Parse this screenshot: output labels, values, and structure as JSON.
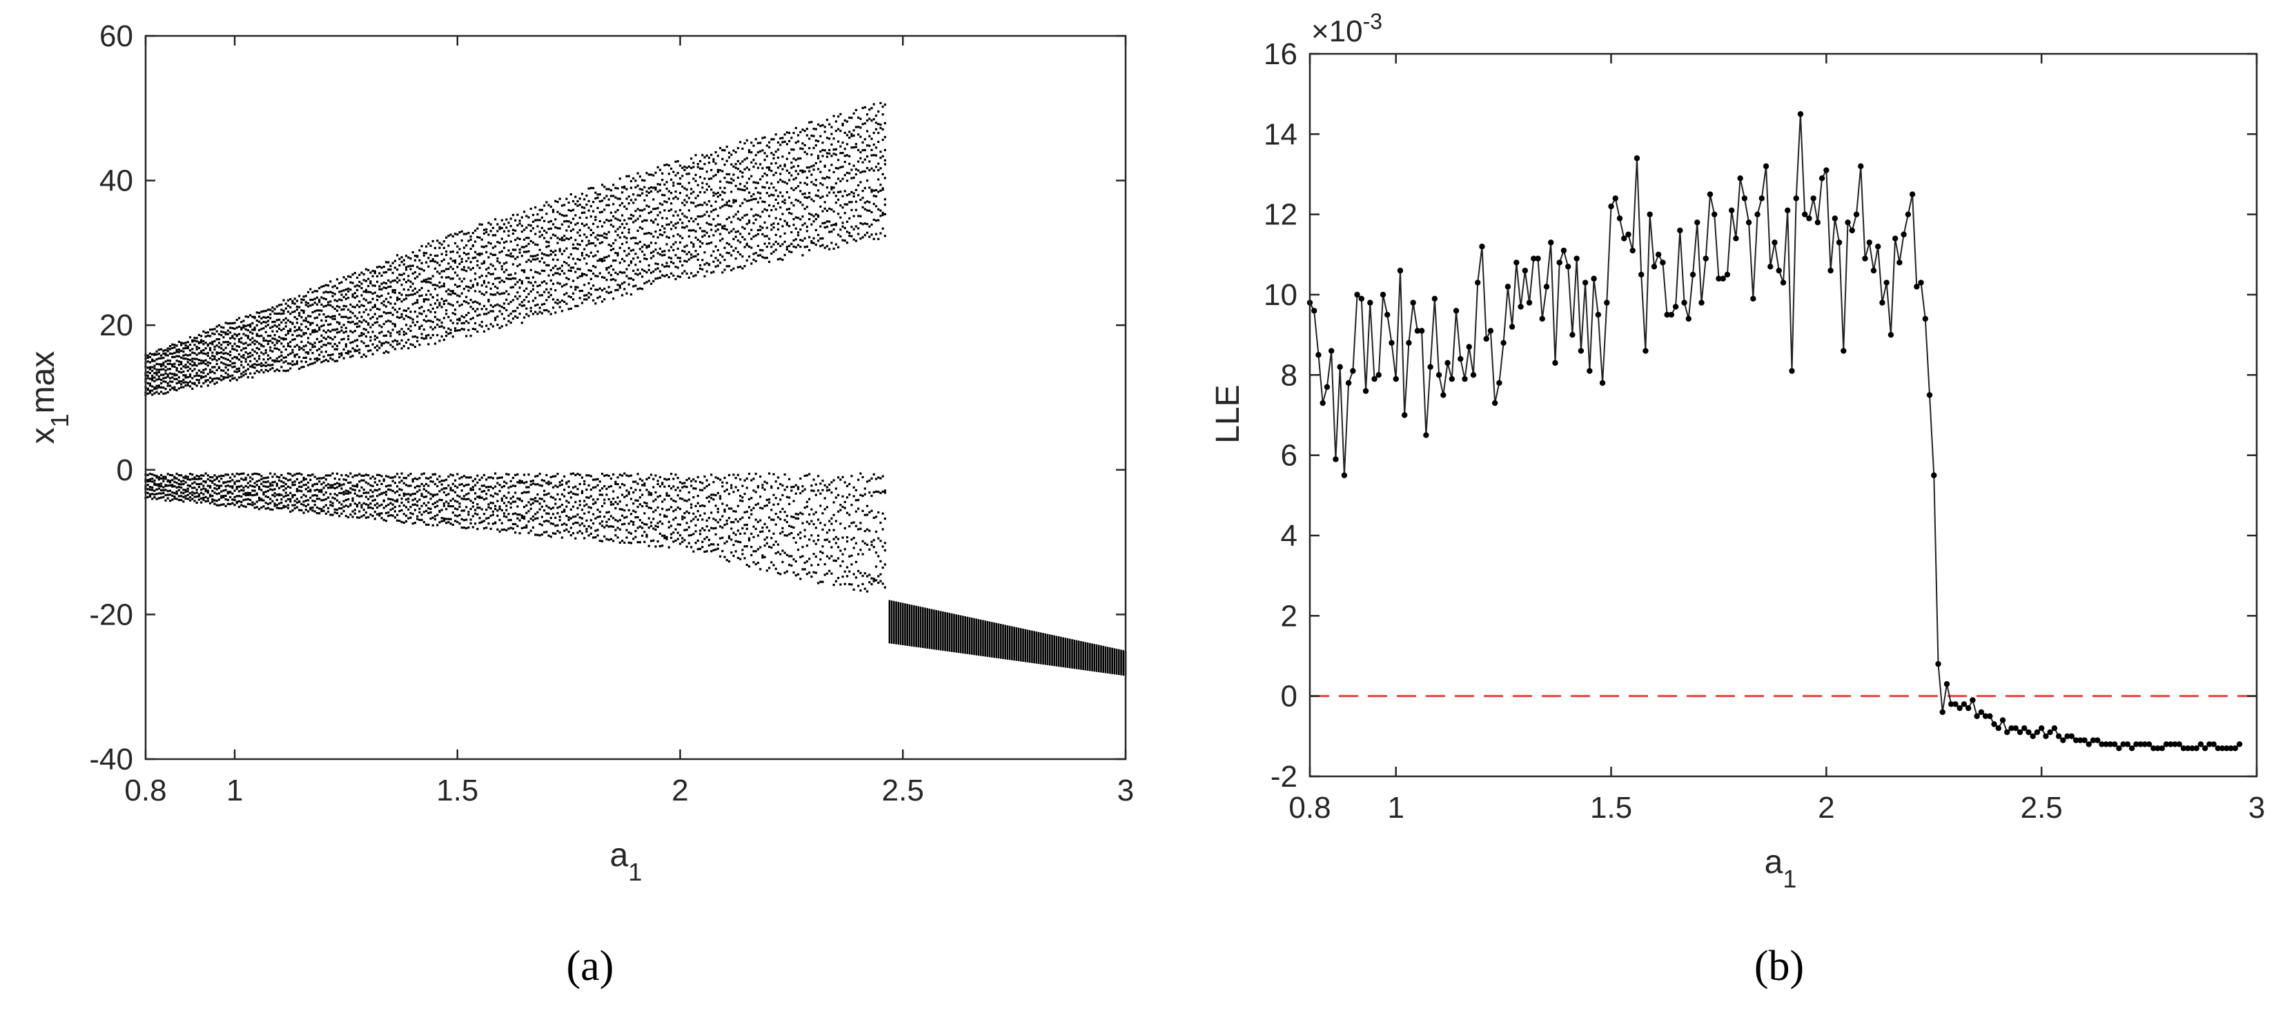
{
  "figure_labels": {
    "a": "(a)",
    "b": "(b)"
  },
  "chart_data": [
    {
      "id": "a",
      "type": "scatter",
      "title": "",
      "xlabel": "a",
      "xlabel_sub": "1",
      "ylabel_main": "x",
      "ylabel_sub": "1",
      "ylabel_suffix": "max",
      "xlim": [
        0.8,
        3.0
      ],
      "ylim": [
        -40,
        60
      ],
      "xticks": [
        0.8,
        1,
        1.5,
        2,
        2.5,
        3
      ],
      "xtick_labels": [
        "0.8",
        "1",
        "1.5",
        "2",
        "2.5",
        "3"
      ],
      "yticks": [
        -40,
        -20,
        0,
        20,
        40,
        60
      ],
      "ytick_labels": [
        "-40",
        "-20",
        "0",
        "20",
        "40",
        "60"
      ],
      "grid": false,
      "description_series": [
        {
          "name": "upper band",
          "x_range": [
            0.8,
            2.46
          ],
          "lower": [
            [
              0.8,
              10
            ],
            [
              1.5,
              18
            ],
            [
              2.0,
              26
            ],
            [
              2.46,
              32
            ]
          ],
          "upper": [
            [
              0.8,
              16
            ],
            [
              1.5,
              33
            ],
            [
              2.0,
              43
            ],
            [
              2.46,
              51
            ]
          ]
        },
        {
          "name": "lower band",
          "x_range": [
            0.8,
            2.46
          ],
          "top": [
            [
              0.8,
              -0.5
            ],
            [
              2.46,
              -0.5
            ]
          ],
          "bottom": [
            [
              0.8,
              -4
            ],
            [
              1.5,
              -8
            ],
            [
              2.0,
              -11
            ],
            [
              2.46,
              -18
            ]
          ]
        },
        {
          "name": "post-transition band",
          "x_range": [
            2.47,
            3.0
          ],
          "top": [
            [
              2.47,
              -18
            ],
            [
              3.0,
              -25
            ]
          ],
          "bottom": [
            [
              2.47,
              -24
            ],
            [
              3.0,
              -28.5
            ]
          ]
        }
      ]
    },
    {
      "id": "b",
      "type": "line",
      "title": "",
      "xlabel": "a",
      "xlabel_sub": "1",
      "ylabel": "LLE",
      "exponent_label": "×10",
      "exponent_power": "-3",
      "xlim": [
        0.8,
        3.0
      ],
      "ylim": [
        -2,
        16
      ],
      "xticks": [
        0.8,
        1,
        1.5,
        2,
        2.5,
        3
      ],
      "xtick_labels": [
        "0.8",
        "1",
        "1.5",
        "2",
        "2.5",
        "3"
      ],
      "yticks": [
        -2,
        0,
        2,
        4,
        6,
        8,
        10,
        12,
        14,
        16
      ],
      "ytick_labels": [
        "-2",
        "0",
        "2",
        "4",
        "6",
        "8",
        "10",
        "12",
        "14",
        "16"
      ],
      "grid": false,
      "reference_line": {
        "y": 0,
        "color": "#e8413c",
        "style": "dashed"
      },
      "series": [
        {
          "name": "LLE",
          "x_start": 0.8,
          "x_step": 0.01,
          "values": [
            9.8,
            9.6,
            8.5,
            7.3,
            7.7,
            8.6,
            5.9,
            8.2,
            5.5,
            7.8,
            8.1,
            10.0,
            9.9,
            7.6,
            9.8,
            7.9,
            8.0,
            10.0,
            9.5,
            8.8,
            7.9,
            10.6,
            7.0,
            8.8,
            9.8,
            9.1,
            9.1,
            6.5,
            8.2,
            9.9,
            8.0,
            7.5,
            8.3,
            7.9,
            9.6,
            8.4,
            7.9,
            8.7,
            8.0,
            10.3,
            11.2,
            8.9,
            9.1,
            7.3,
            7.8,
            8.8,
            10.2,
            9.2,
            10.8,
            9.7,
            10.6,
            9.8,
            10.9,
            10.9,
            9.4,
            10.2,
            11.3,
            8.3,
            10.8,
            11.1,
            10.7,
            9.0,
            10.9,
            8.6,
            10.3,
            8.1,
            10.4,
            9.5,
            7.8,
            9.8,
            12.2,
            12.4,
            11.9,
            11.4,
            11.5,
            11.1,
            13.4,
            10.5,
            8.6,
            12.0,
            10.7,
            11.0,
            10.8,
            9.5,
            9.5,
            9.7,
            11.6,
            9.8,
            9.4,
            10.5,
            11.8,
            9.8,
            10.9,
            12.5,
            12.0,
            10.4,
            10.4,
            10.5,
            12.1,
            11.4,
            12.9,
            12.4,
            11.8,
            9.9,
            12.0,
            12.4,
            13.2,
            10.7,
            11.3,
            10.6,
            10.3,
            12.1,
            8.1,
            12.4,
            14.5,
            12.0,
            11.9,
            12.4,
            11.8,
            12.9,
            13.1,
            10.6,
            11.9,
            11.3,
            8.6,
            11.8,
            11.6,
            12.0,
            13.2,
            10.9,
            11.3,
            10.6,
            11.2,
            9.8,
            10.3,
            9.0,
            11.4,
            10.8,
            11.5,
            12.0,
            12.5,
            10.2,
            10.3,
            9.4,
            7.5,
            5.5,
            0.8,
            -0.4,
            0.3,
            -0.2,
            -0.2,
            -0.3,
            -0.2,
            -0.3,
            -0.1,
            -0.5,
            -0.4,
            -0.5,
            -0.5,
            -0.7,
            -0.8,
            -0.6,
            -0.9,
            -0.8,
            -0.8,
            -0.9,
            -0.8,
            -0.9,
            -1.0,
            -0.9,
            -0.8,
            -1.0,
            -0.9,
            -0.8,
            -1.0,
            -1.1,
            -1.0,
            -1.0,
            -1.1,
            -1.1,
            -1.1,
            -1.2,
            -1.1,
            -1.1,
            -1.2,
            -1.2,
            -1.2,
            -1.2,
            -1.3,
            -1.2,
            -1.2,
            -1.3,
            -1.2,
            -1.2,
            -1.2,
            -1.2,
            -1.3,
            -1.3,
            -1.3,
            -1.2,
            -1.2,
            -1.2,
            -1.2,
            -1.3,
            -1.3,
            -1.3,
            -1.3,
            -1.2,
            -1.3,
            -1.2,
            -1.2,
            -1.3,
            -1.3,
            -1.3,
            -1.3,
            -1.3,
            -1.2
          ]
        }
      ]
    }
  ]
}
